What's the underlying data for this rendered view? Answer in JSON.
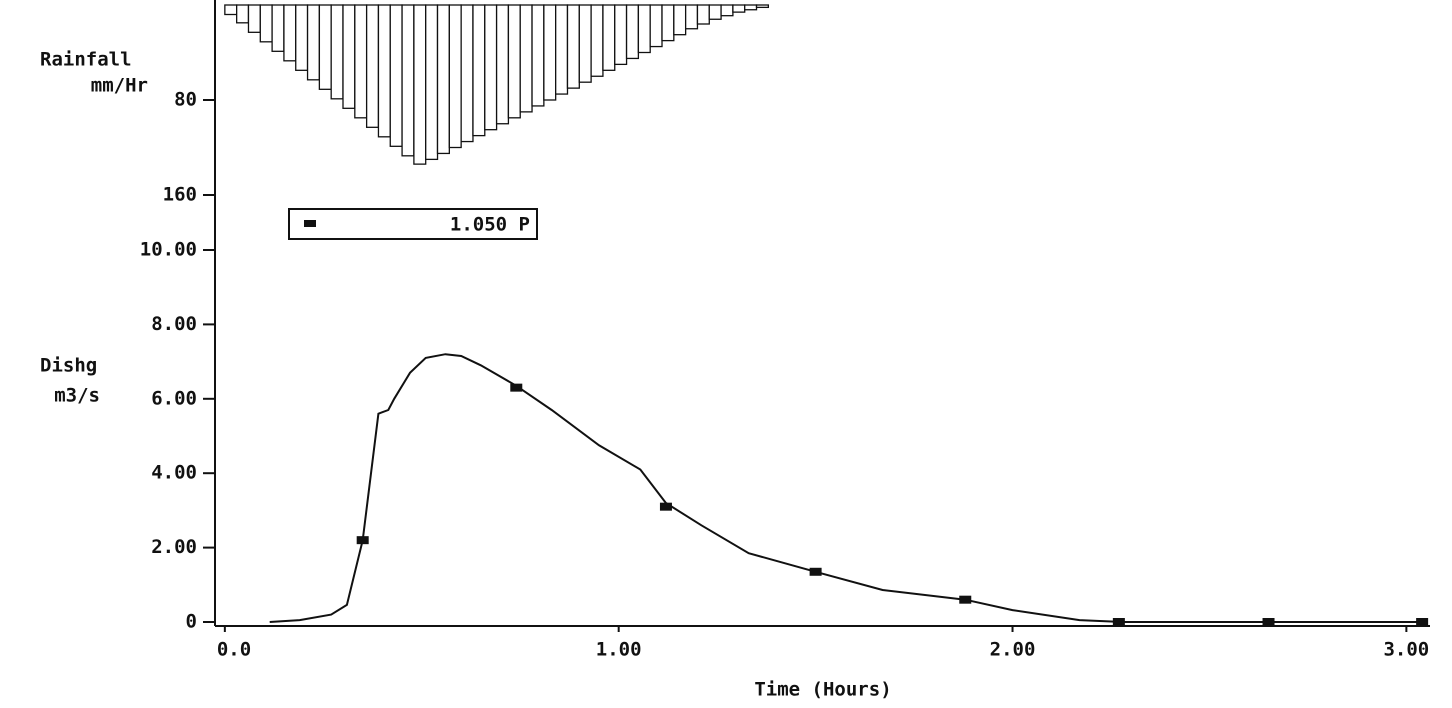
{
  "chart_data": [
    {
      "type": "histogram",
      "inverted": true,
      "ylabel": [
        "Rainfall",
        "mm/Hr"
      ],
      "bins": [
        0,
        0.03,
        0.06,
        0.09,
        0.12,
        0.15,
        0.18,
        0.21,
        0.24,
        0.27,
        0.3,
        0.33,
        0.36,
        0.39,
        0.42,
        0.45,
        0.48,
        0.51,
        0.54,
        0.57,
        0.6,
        0.63,
        0.66,
        0.69,
        0.72,
        0.75,
        0.78,
        0.81,
        0.84,
        0.87,
        0.9,
        0.93,
        0.96,
        0.99,
        1.02,
        1.05,
        1.08,
        1.11,
        1.14,
        1.17,
        1.2,
        1.23,
        1.26,
        1.29,
        1.32,
        1.35,
        1.38
      ],
      "values": [
        8,
        15,
        23,
        31,
        39,
        47,
        55,
        63,
        71,
        79,
        87,
        95,
        103,
        111,
        119,
        127,
        134,
        130,
        125,
        120,
        115,
        110,
        105,
        100,
        95,
        90,
        85,
        80,
        75,
        70,
        65,
        60,
        55,
        50,
        45,
        40,
        35,
        30,
        25,
        20,
        16,
        12,
        9,
        6,
        4,
        2
      ],
      "color": "#ffffff",
      "xlim": [
        -0.025,
        3.06
      ],
      "ylim": [
        0,
        200
      ],
      "yticks": [
        80,
        160
      ]
    },
    {
      "type": "line",
      "xlabel": "Time (Hours)",
      "ylabel": [
        "Dishg",
        "m3/s"
      ],
      "xlim": [
        -0.025,
        3.06
      ],
      "ylim": [
        0,
        10
      ],
      "xticks": [
        {
          "value": 0,
          "label": "0.0"
        },
        {
          "value": 1,
          "label": "1.00"
        },
        {
          "value": 2,
          "label": "2.00"
        },
        {
          "value": 3,
          "label": "3.00"
        }
      ],
      "yticks": [
        0,
        {
          "value": 2,
          "label": "2.00"
        },
        {
          "value": 4,
          "label": "4.00"
        },
        {
          "value": 6,
          "label": "6.00"
        },
        {
          "value": 8,
          "label": "8.00"
        },
        {
          "value": 10,
          "label": "10.00"
        }
      ],
      "series": [
        {
          "name": "1.050 P",
          "color": "#111111",
          "x": [
            0.114,
            0.19,
            0.27,
            0.31,
            0.35,
            0.39,
            0.415,
            0.43,
            0.47,
            0.51,
            0.56,
            0.6,
            0.65,
            0.74,
            0.83,
            0.95,
            1.055,
            1.12,
            1.21,
            1.33,
            1.5,
            1.67,
            1.88,
            2.0,
            2.17,
            2.28,
            3.04
          ],
          "values": [
            0,
            0.05,
            0.2,
            0.46,
            2.2,
            5.6,
            5.7,
            6.0,
            6.7,
            7.1,
            7.2,
            7.15,
            6.9,
            6.35,
            5.7,
            4.75,
            4.1,
            3.2,
            2.6,
            1.85,
            1.35,
            0.86,
            0.6,
            0.32,
            0.05,
            0,
            0
          ],
          "markers": {
            "x": [
              0.35,
              0.74,
              1.12,
              1.5,
              1.88,
              2.27,
              2.65,
              3.04
            ],
            "values": [
              2.2,
              6.3,
              3.1,
              1.35,
              0.6,
              0,
              0,
              0
            ]
          }
        }
      ]
    }
  ]
}
